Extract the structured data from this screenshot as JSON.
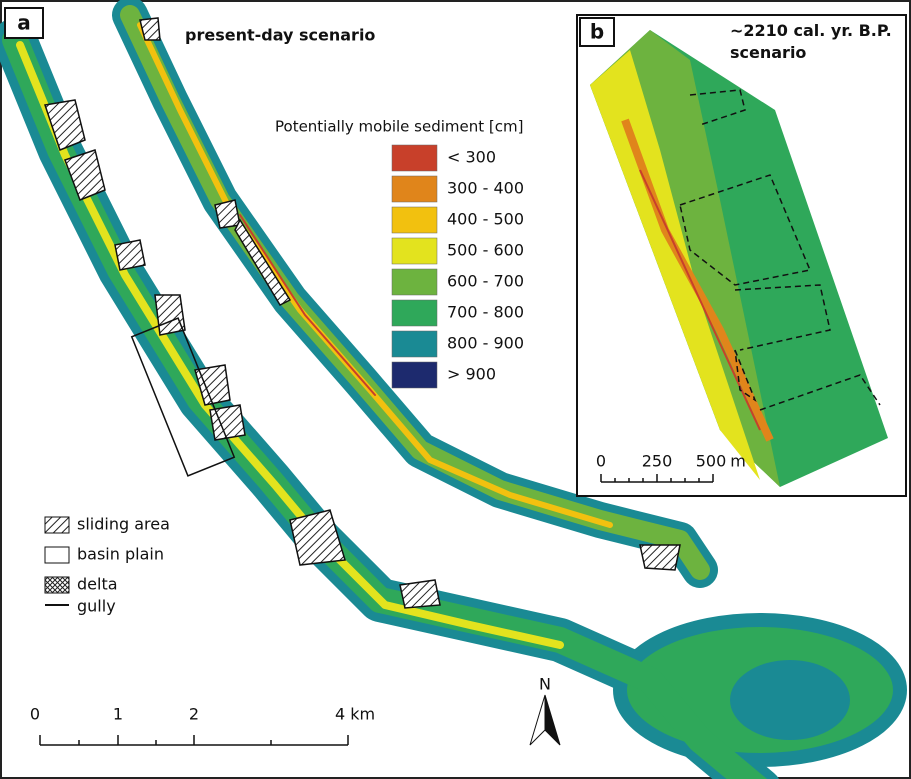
{
  "panel_a": {
    "label": "a",
    "title": "present-day scenario",
    "legend_title": "Potentially mobile sediment [cm]",
    "classes": [
      {
        "label": "< 300",
        "color": "#c8402a"
      },
      {
        "label": "300 - 400",
        "color": "#e0851b"
      },
      {
        "label": "400 - 500",
        "color": "#f2c10f"
      },
      {
        "label": "500 - 600",
        "color": "#e3e31e"
      },
      {
        "label": "600 - 700",
        "color": "#6db33f"
      },
      {
        "label": "700 - 800",
        "color": "#2fa85a"
      },
      {
        "label": "800 - 900",
        "color": "#1a8a94"
      },
      {
        "label": "> 900",
        "color": "#1d2a6e"
      }
    ],
    "features": [
      "sliding area",
      "basin plain",
      "delta",
      "gully"
    ],
    "scale_labels": [
      "0",
      "1",
      "2",
      "4 km"
    ],
    "north": "N"
  },
  "panel_b": {
    "label": "b",
    "title": "~2210 cal. yr. B.P. scenario",
    "scale_labels": [
      "0",
      "250",
      "500",
      "m"
    ]
  }
}
